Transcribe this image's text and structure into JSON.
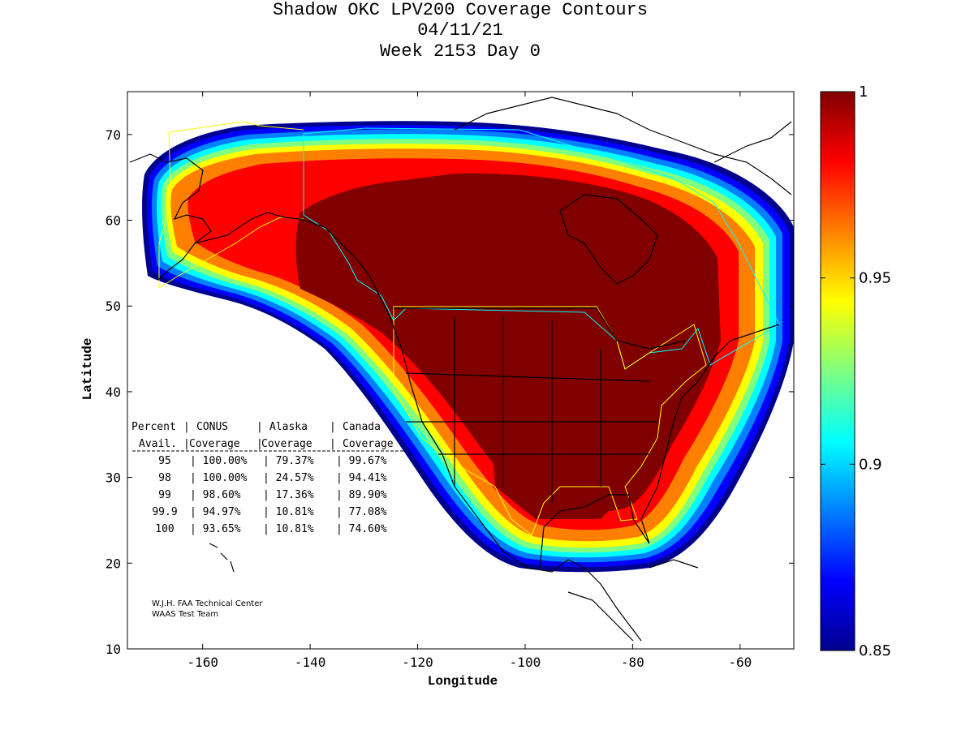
{
  "title": {
    "line1": "Shadow OKC LPV200 Coverage Contours",
    "line2": "04/11/21",
    "line3": "Week 2153 Day 0"
  },
  "axes": {
    "xlabel": "Longitude",
    "ylabel": "Latitude",
    "x_ticks": [
      "-160",
      "-140",
      "-120",
      "-100",
      "-80",
      "-60"
    ],
    "y_ticks": [
      "10",
      "20",
      "30",
      "40",
      "50",
      "60",
      "70"
    ],
    "xlim": [
      -174,
      -50
    ],
    "ylim": [
      10,
      75
    ]
  },
  "colorbar": {
    "ticks": [
      "1",
      "0.95",
      "0.9",
      "0.85"
    ],
    "range": [
      0.85,
      1
    ],
    "colormap": [
      "#00008f",
      "#0000ff",
      "#0080ff",
      "#00ffff",
      "#80ff80",
      "#ffff00",
      "#ff8000",
      "#ff0000",
      "#800000"
    ]
  },
  "table": {
    "header1": [
      "Percent",
      "CONUS",
      "Alaska",
      "Canada"
    ],
    "header2": [
      "Avail.",
      "Coverage",
      "Coverage",
      "Coverage"
    ],
    "rows": [
      [
        "95",
        "100.00%",
        "79.37%",
        "99.67%"
      ],
      [
        "98",
        "100.00%",
        "24.57%",
        "94.41%"
      ],
      [
        "99",
        "98.60%",
        "17.36%",
        "89.90%"
      ],
      [
        "99.9",
        "94.97%",
        "10.81%",
        "77.08%"
      ],
      [
        "100",
        "93.65%",
        "10.81%",
        "74.60%"
      ]
    ]
  },
  "credit": {
    "line1": "W.J.H. FAA Technical Center",
    "line2": "WAAS Test Team"
  },
  "colors": {
    "coverage_max": "#800000",
    "region_outline": "#ffff00",
    "canada_outline": "#00ffff",
    "coastline": "#000000"
  }
}
